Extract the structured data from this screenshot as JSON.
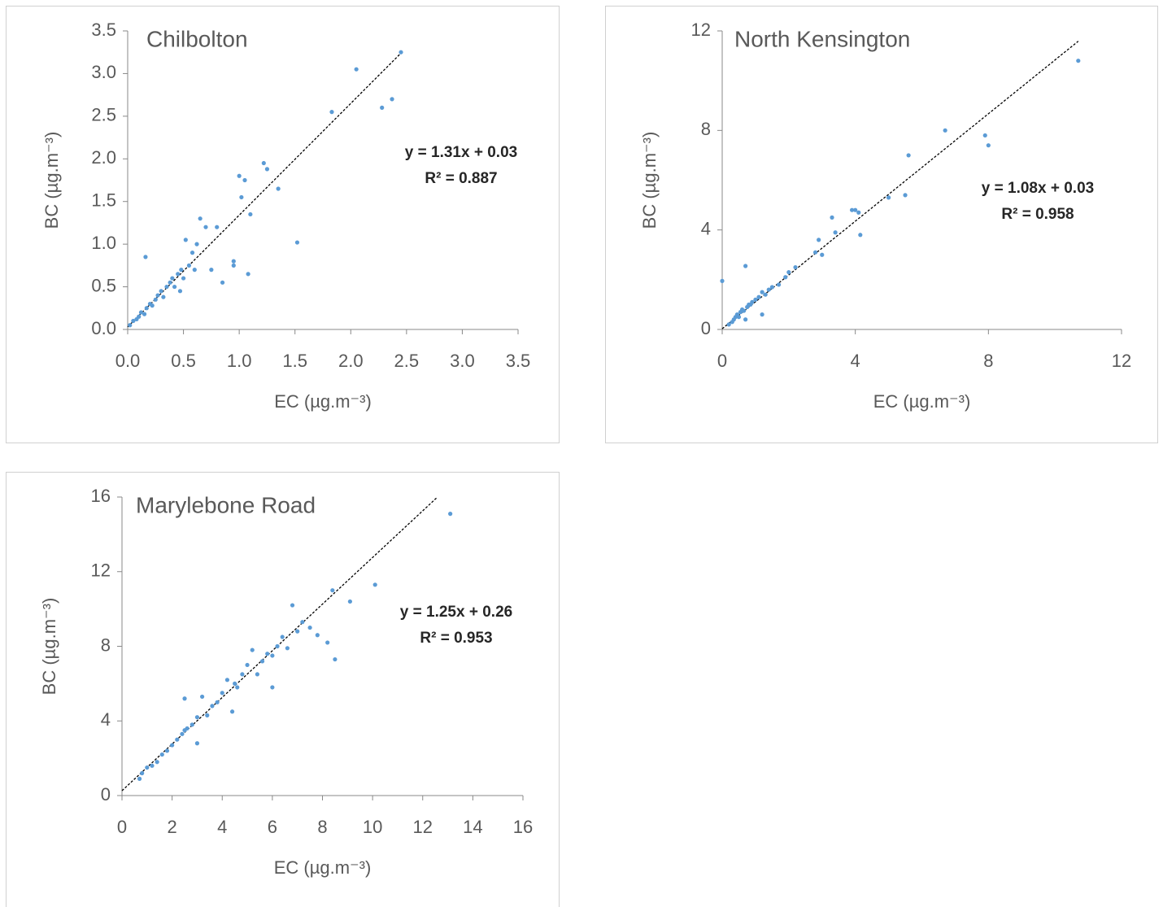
{
  "chart_data": [
    {
      "type": "scatter",
      "title": "Chilbolton",
      "x_label": "EC (µg.m⁻³)",
      "y_label": "BC (µg.m⁻³)",
      "annotations": [
        "y = 1.31x + 0.03",
        "R² = 0.887"
      ],
      "trendline": {
        "slope": 1.31,
        "intercept": 0.03
      },
      "color": "#5b9bd5",
      "x": [
        0.02,
        0.05,
        0.08,
        0.1,
        0.12,
        0.15,
        0.17,
        0.2,
        0.22,
        0.25,
        0.27,
        0.3,
        0.32,
        0.35,
        0.38,
        0.4,
        0.42,
        0.45,
        0.48,
        0.5,
        0.52,
        0.55,
        0.58,
        0.6,
        0.62,
        0.65,
        0.7,
        0.75,
        0.8,
        0.85,
        0.95,
        1.0,
        1.02,
        1.05,
        1.1,
        1.22,
        1.25,
        1.35,
        1.52,
        1.83,
        2.05,
        2.28,
        2.37,
        2.45,
        0.16,
        0.47,
        0.95,
        1.08
      ],
      "values": [
        0.05,
        0.1,
        0.12,
        0.15,
        0.2,
        0.18,
        0.25,
        0.3,
        0.28,
        0.35,
        0.4,
        0.45,
        0.38,
        0.5,
        0.55,
        0.6,
        0.5,
        0.65,
        0.7,
        0.6,
        1.05,
        0.75,
        0.9,
        0.7,
        1.0,
        1.3,
        1.2,
        0.7,
        1.2,
        0.55,
        0.8,
        1.8,
        1.55,
        1.75,
        1.35,
        1.95,
        1.88,
        1.65,
        1.02,
        2.55,
        3.05,
        2.6,
        2.7,
        3.25,
        0.85,
        0.45,
        0.75,
        0.65
      ],
      "xlim": [
        0,
        3.5
      ],
      "ylim": [
        0,
        3.5
      ],
      "xticks": [
        {
          "value": 0,
          "label": "0.0"
        },
        0.5,
        {
          "value": 1,
          "label": "1.0"
        },
        1.5,
        {
          "value": 2,
          "label": "2.0"
        },
        2.5,
        {
          "value": 3,
          "label": "3.0"
        },
        3.5
      ],
      "yticks": [
        {
          "value": 0,
          "label": "0.0"
        },
        0.5,
        {
          "value": 1,
          "label": "1.0"
        },
        1.5,
        {
          "value": 2,
          "label": "2.0"
        },
        2.5,
        {
          "value": 3,
          "label": "3.0"
        },
        3.5
      ]
    },
    {
      "type": "scatter",
      "title": "North Kensington",
      "x_label": "EC (µg.m⁻³)",
      "y_label": "BC (µg.m⁻³)",
      "annotations": [
        "y = 1.08x + 0.03",
        "R² = 0.958"
      ],
      "trendline": {
        "slope": 1.08,
        "intercept": 0.03
      },
      "color": "#5b9bd5",
      "x": [
        0.0,
        0.2,
        0.3,
        0.35,
        0.4,
        0.45,
        0.5,
        0.55,
        0.6,
        0.65,
        0.7,
        0.75,
        0.8,
        0.85,
        0.9,
        1.0,
        1.1,
        1.2,
        1.3,
        1.4,
        1.5,
        1.7,
        1.9,
        2.0,
        2.2,
        2.8,
        2.9,
        3.0,
        3.3,
        3.4,
        3.9,
        4.0,
        4.1,
        4.15,
        5.0,
        5.5,
        5.6,
        6.7,
        7.9,
        8.0,
        10.7,
        0.7,
        1.2
      ],
      "values": [
        1.95,
        0.2,
        0.3,
        0.4,
        0.5,
        0.6,
        0.5,
        0.7,
        0.8,
        0.75,
        2.55,
        0.9,
        1.0,
        1.0,
        1.1,
        1.2,
        1.3,
        1.5,
        1.4,
        1.6,
        1.7,
        1.8,
        2.1,
        2.3,
        2.5,
        3.1,
        3.6,
        3.0,
        4.5,
        3.9,
        4.8,
        4.8,
        4.7,
        3.8,
        5.3,
        5.4,
        7.0,
        8.0,
        7.8,
        7.4,
        10.8,
        0.4,
        0.6
      ],
      "xlim": [
        0,
        12
      ],
      "ylim": [
        0,
        12
      ],
      "xticks": [
        0,
        4,
        8,
        12
      ],
      "yticks": [
        0,
        4,
        8,
        12
      ]
    },
    {
      "type": "scatter",
      "title": "Marylebone Road",
      "x_label": "EC (µg.m⁻³)",
      "y_label": "BC (µg.m⁻³)",
      "annotations": [
        "y = 1.25x + 0.26",
        "R² = 0.953"
      ],
      "trendline": {
        "slope": 1.25,
        "intercept": 0.26
      },
      "color": "#5b9bd5",
      "x": [
        0.7,
        0.8,
        1.0,
        1.2,
        1.4,
        1.6,
        1.8,
        2.0,
        2.2,
        2.4,
        2.5,
        2.6,
        2.8,
        3.0,
        3.0,
        3.2,
        3.4,
        3.6,
        3.8,
        4.0,
        4.2,
        4.4,
        4.6,
        4.8,
        5.0,
        5.2,
        5.4,
        5.6,
        5.8,
        6.0,
        6.2,
        6.4,
        6.6,
        6.8,
        7.0,
        7.2,
        7.5,
        7.8,
        8.2,
        8.4,
        8.5,
        9.1,
        10.1,
        13.1,
        2.5,
        4.5,
        6.0
      ],
      "values": [
        0.9,
        1.2,
        1.5,
        1.6,
        1.8,
        2.2,
        2.4,
        2.7,
        3.0,
        3.3,
        5.2,
        3.6,
        3.8,
        2.8,
        4.2,
        5.3,
        4.3,
        4.8,
        5.0,
        5.5,
        6.2,
        4.5,
        5.8,
        6.5,
        7.0,
        7.8,
        6.5,
        7.2,
        7.6,
        5.8,
        8.0,
        8.5,
        7.9,
        10.2,
        8.8,
        9.3,
        9.0,
        8.6,
        8.2,
        11.0,
        7.3,
        10.4,
        11.3,
        15.1,
        3.5,
        6.0,
        7.5
      ],
      "xlim": [
        0,
        16
      ],
      "ylim": [
        0,
        16
      ],
      "xticks": [
        0,
        2,
        4,
        6,
        8,
        10,
        12,
        14,
        16
      ],
      "yticks": [
        0,
        4,
        8,
        12,
        16
      ]
    }
  ]
}
